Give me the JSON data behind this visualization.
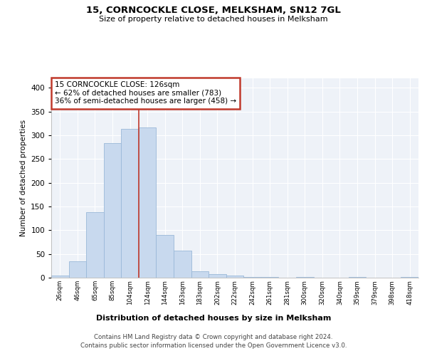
{
  "title": "15, CORNCOCKLE CLOSE, MELKSHAM, SN12 7GL",
  "subtitle": "Size of property relative to detached houses in Melksham",
  "xlabel": "Distribution of detached houses by size in Melksham",
  "ylabel": "Number of detached properties",
  "bar_color": "#c8d9ee",
  "bar_edge_color": "#9ab8d8",
  "background_color": "#eef2f8",
  "grid_color": "#ffffff",
  "property_line_color": "#c0392b",
  "property_bin_index": 5,
  "annotation_text": "15 CORNCOCKLE CLOSE: 126sqm\n← 62% of detached houses are smaller (783)\n36% of semi-detached houses are larger (458) →",
  "footer_line1": "Contains HM Land Registry data © Crown copyright and database right 2024.",
  "footer_line2": "Contains public sector information licensed under the Open Government Licence v3.0.",
  "categories": [
    "26sqm",
    "46sqm",
    "65sqm",
    "85sqm",
    "104sqm",
    "124sqm",
    "144sqm",
    "163sqm",
    "183sqm",
    "202sqm",
    "222sqm",
    "242sqm",
    "261sqm",
    "281sqm",
    "300sqm",
    "320sqm",
    "340sqm",
    "359sqm",
    "379sqm",
    "398sqm",
    "418sqm"
  ],
  "values": [
    4,
    35,
    138,
    283,
    314,
    317,
    90,
    57,
    14,
    8,
    4,
    2,
    2,
    0,
    2,
    0,
    0,
    1,
    0,
    0,
    1
  ],
  "ylim": [
    0,
    420
  ],
  "yticks": [
    0,
    50,
    100,
    150,
    200,
    250,
    300,
    350,
    400
  ]
}
